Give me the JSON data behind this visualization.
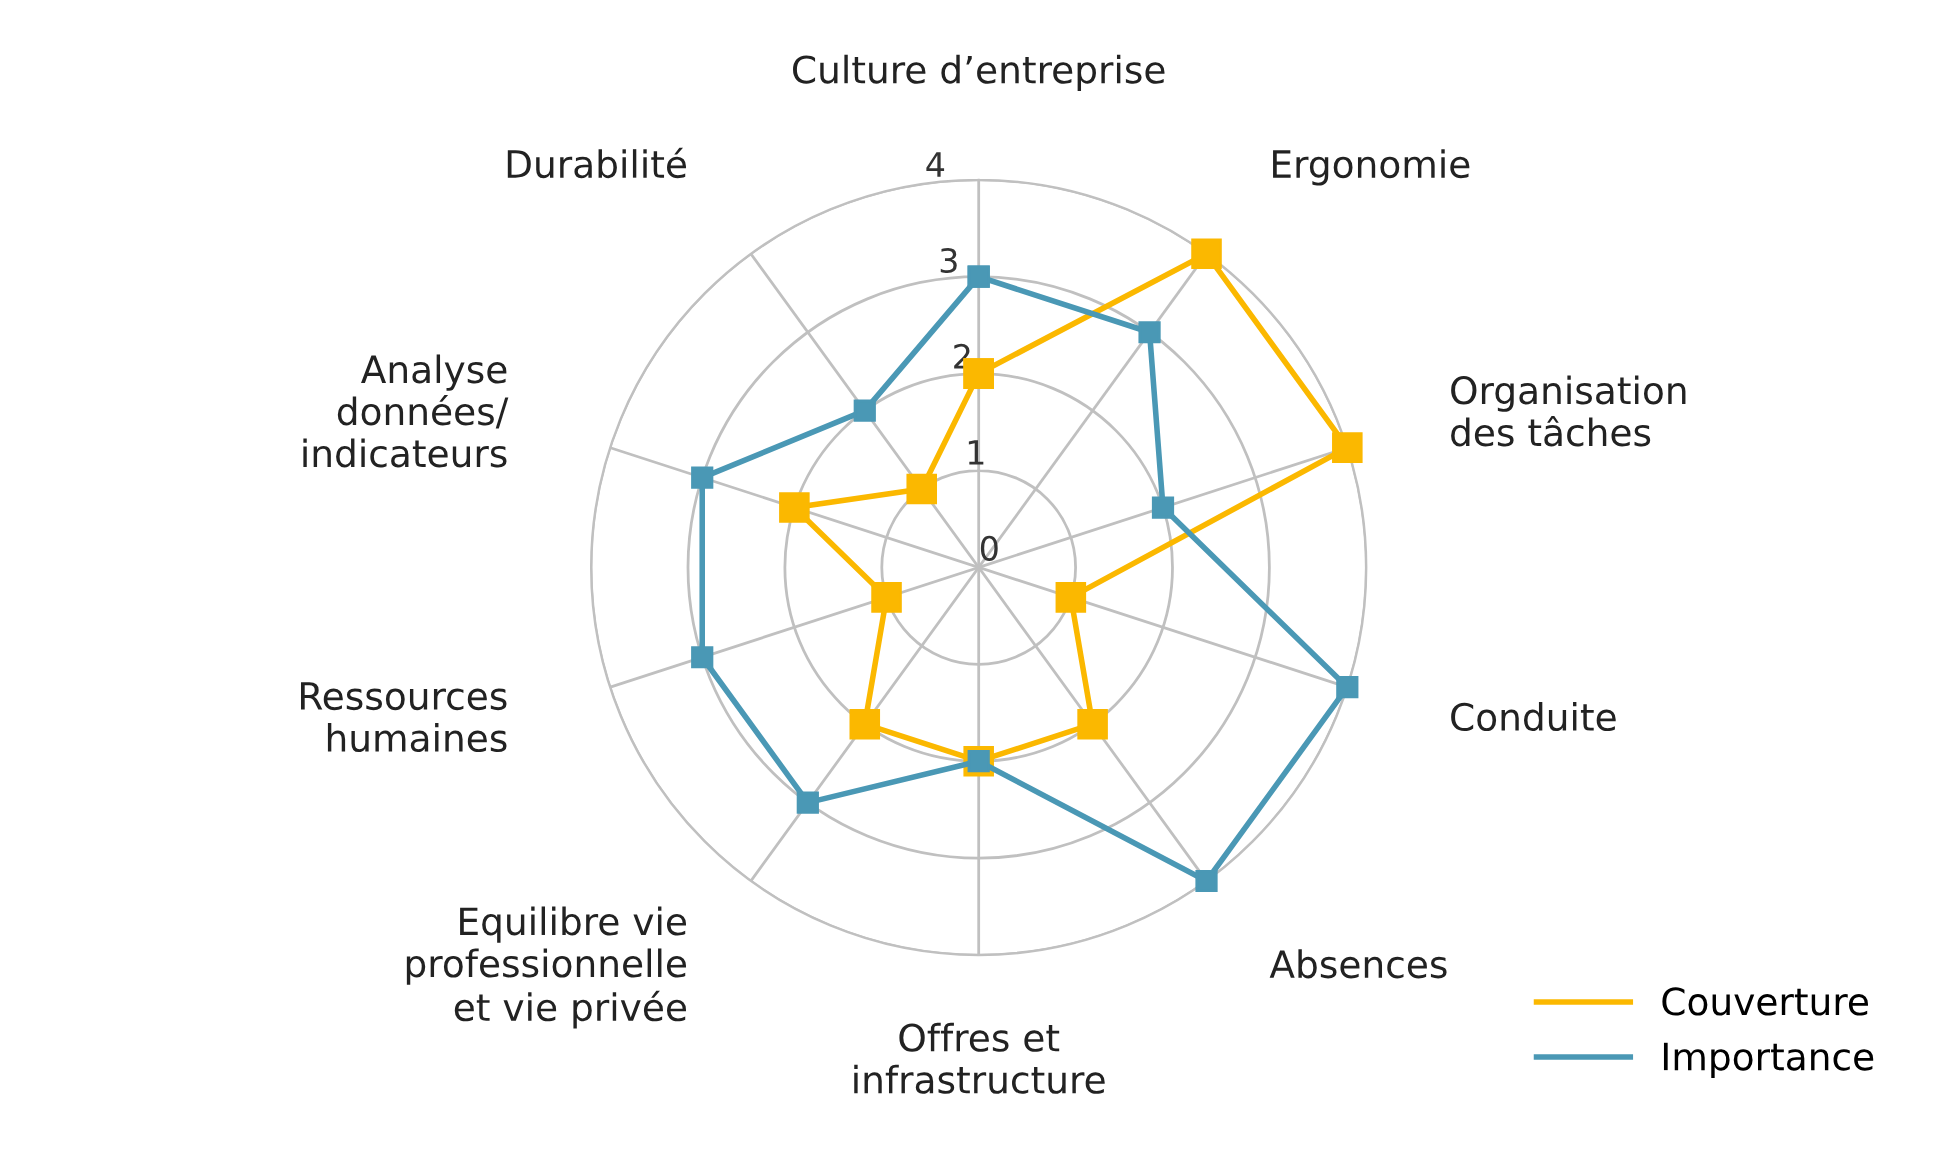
{
  "chart_data": {
    "type": "radar",
    "categories": [
      "Culture d’entreprise",
      "Ergonomie",
      "Organisation\ndes tâches",
      "Conduite",
      "Absences",
      "Offres et\ninfrastructure",
      "Equilibre vie\nprofessionnelle\net vie privée",
      "Ressources\nhumaines",
      "Analyse\ndonnées/\nindicateurs",
      "Durabilité"
    ],
    "series": [
      {
        "name": "Couverture",
        "color": "#fbb800",
        "values": [
          2,
          4,
          4,
          1,
          2,
          2,
          2,
          1,
          2,
          1
        ]
      },
      {
        "name": "Importance",
        "color": "#4a98b5",
        "values": [
          3,
          3,
          2,
          4,
          4,
          2,
          3,
          3,
          3,
          2
        ]
      }
    ],
    "ylim": [
      0,
      4
    ],
    "yticks": [
      0,
      1,
      2,
      3,
      4
    ],
    "grid": true,
    "legend": "bottom right",
    "marker": "square",
    "line_style": "solid"
  }
}
